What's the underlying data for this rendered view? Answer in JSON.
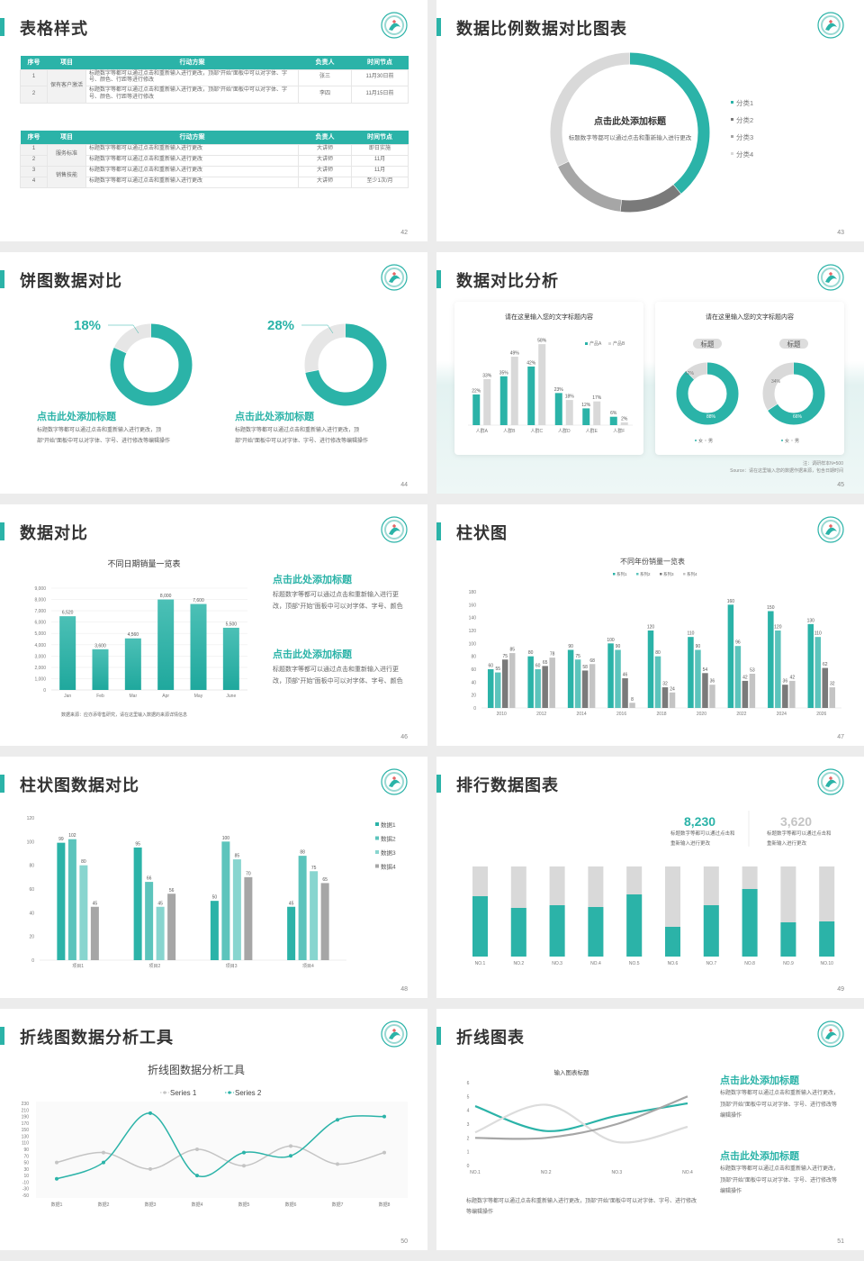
{
  "colors": {
    "teal": "#2bb3a8",
    "teal2": "#5cc4bc",
    "teal3": "#88d5cf",
    "dark_gray": "#7a7a7a",
    "mid_gray": "#a6a6a6",
    "light_gray": "#d9d9d9"
  },
  "slides": {
    "s42": {
      "title": "表格样式",
      "page": "42",
      "table1": {
        "headers": [
          "序号",
          "项目",
          "行动方案",
          "负责人",
          "时间节点"
        ],
        "groups": [
          {
            "name": "保有客户激活",
            "rows": [
              [
                "1",
                "标题数字等都可以通过点击和重新输入进行更改，顶部“开始”面板中可以对字体、字号、颜色、行距等进行修改",
                "张三",
                "11月30日前"
              ],
              [
                "2",
                "标题数字等都可以通过点击和重新输入进行更改，顶部“开始”面板中可以对字体、字号、颜色、行距等进行修改",
                "李四",
                "11月15日前"
              ]
            ]
          }
        ]
      },
      "table2": {
        "headers": [
          "序号",
          "项目",
          "行动方案",
          "负责人",
          "时间节点"
        ],
        "groups": [
          {
            "name": "服务标准",
            "rows": [
              [
                "1",
                "标题数字等都可以通过点击和重新输入进行更改",
                "大讲师",
                "即日实施"
              ],
              [
                "2",
                "标题数字等都可以通过点击和重新输入进行更改",
                "大讲师",
                "11月"
              ]
            ]
          },
          {
            "name": "销售技能",
            "rows": [
              [
                "3",
                "标题数字等都可以通过点击和重新输入进行更改",
                "大讲师",
                "11月"
              ],
              [
                "4",
                "标题数字等都可以通过点击和重新输入进行更改",
                "大讲师",
                "至少1次/月"
              ]
            ]
          }
        ]
      }
    },
    "s43": {
      "title": "数据比例数据对比图表",
      "page": "43",
      "center_title": "点击此处添加标题",
      "center_text": "标题数字等都可以通过点击和重新输入进行更改"
    },
    "s44": {
      "title": "饼图数据对比",
      "page": "44",
      "items": [
        {
          "percent": "18%",
          "heading": "点击此处添加标题",
          "text": "标题数字等都可以通过点击和重新输入进行更改，顶部“开始”面板中可以对字体、字号、进行修改等编辑操作"
        },
        {
          "percent": "28%",
          "heading": "点击此处添加标题",
          "text": "标题数字等都可以通过点击和重新输入进行更改，顶部“开始”面板中可以对字体、字号、进行修改等编辑操作"
        }
      ]
    },
    "s45": {
      "title": "数据对比分析",
      "page": "45",
      "note": "注：调研样本N=500",
      "source": "Source：请在这里输入您的数据作据来源，包含日期时间"
    },
    "s46": {
      "title": "数据对比",
      "page": "46",
      "source": "数据来源：应亦添零售研究，请在这里输入数据的来源详情信息",
      "blocks": [
        {
          "heading": "点击此处添加标题",
          "text": "标题数字等都可以通过点击和重新输入进行更改，顶部“开始”面板中可以对字体、字号、颜色"
        },
        {
          "heading": "点击此处添加标题",
          "text": "标题数字等都可以通过点击和重新输入进行更改，顶部“开始”面板中可以对字体、字号、颜色"
        }
      ]
    },
    "s47": {
      "title": "柱状图",
      "page": "47"
    },
    "s48": {
      "title": "柱状图数据对比",
      "page": "48"
    },
    "s49": {
      "title": "排行数据图表",
      "page": "49",
      "stats": [
        {
          "value": "8,230",
          "text": "标题数字等都可以通过点击和重新输入进行更改"
        },
        {
          "value": "3,620",
          "text": "标题数字等都可以通过点击和重新输入进行更改"
        }
      ]
    },
    "s50": {
      "title": "折线图数据分析工具",
      "page": "50"
    },
    "s51": {
      "title": "折线图表",
      "page": "51",
      "bottom_text": "标题数字等都可以通过点击和重新输入进行更改，顶部“开始”面板中可以对字体、字号、进行修改等编辑操作",
      "blocks": [
        {
          "heading": "点击此处添加标题",
          "text": "标题数字等都可以通过点击和重新输入进行更改，顶部“开始”面板中可以对字体、字号、进行修改等编辑操作"
        },
        {
          "heading": "点击此处添加标题",
          "text": "标题数字等都可以通过点击和重新输入进行更改，顶部“开始”面板中可以对字体、字号、进行修改等编辑操作"
        }
      ]
    }
  },
  "chart_data": [
    {
      "id": "s43",
      "type": "pie",
      "categories": [
        "分类1",
        "分类2",
        "分类3",
        "分类4"
      ],
      "values": [
        39,
        13,
        16,
        32
      ],
      "colors": [
        "#2bb3a8",
        "#7a7a7a",
        "#a6a6a6",
        "#d9d9d9"
      ],
      "legend": "right"
    },
    {
      "id": "s44a",
      "type": "pie",
      "values": [
        82,
        18
      ],
      "colors": [
        "#2bb3a8",
        "#e6e6e6"
      ]
    },
    {
      "id": "s44b",
      "type": "pie",
      "values": [
        72,
        28
      ],
      "colors": [
        "#2bb3a8",
        "#e6e6e6"
      ]
    },
    {
      "id": "s45bar",
      "type": "bar",
      "title": "请在这里输入您的文字标题内容",
      "categories": [
        "人群A",
        "人群B",
        "人群C",
        "人群D",
        "人群E",
        "人群F"
      ],
      "series": [
        {
          "name": "产品A",
          "values": [
            22,
            35,
            42,
            23,
            12,
            6
          ],
          "labels": [
            "22%",
            "35%",
            "42%",
            "23%",
            "12%",
            "6%"
          ]
        },
        {
          "name": "产品B",
          "values": [
            33,
            49,
            58,
            18,
            17,
            2
          ],
          "labels": [
            "33%",
            "49%",
            "58%",
            "18%",
            "17%",
            "2%"
          ]
        }
      ],
      "colors": [
        "#2bb3a8",
        "#d9d9d9"
      ],
      "legend": "top-right"
    },
    {
      "id": "s45pie",
      "type": "pie",
      "title": "请在这里输入您的文字标题内容",
      "pies": [
        {
          "label": "标题",
          "values": [
            88,
            12
          ],
          "labels": [
            "88%",
            "12%"
          ]
        },
        {
          "label": "标题",
          "values": [
            66,
            34
          ],
          "labels": [
            "66%",
            "34%"
          ]
        }
      ],
      "legend_items": [
        "女",
        "男"
      ],
      "colors": [
        "#2bb3a8",
        "#d9d9d9"
      ]
    },
    {
      "id": "s46",
      "type": "bar",
      "title": "不同日期销量一览表",
      "categories": [
        "Jan",
        "Feb",
        "Mar",
        "Apr",
        "May",
        "June"
      ],
      "series": [
        {
          "values": [
            6520,
            3600,
            4560,
            8000,
            7600,
            5500
          ],
          "labels": [
            "6,520",
            "3,600",
            "4,560",
            "8,000",
            "7,600",
            "5,500"
          ]
        }
      ],
      "yticks": [
        "0",
        "1,000",
        "2,000",
        "3,000",
        "4,000",
        "5,000",
        "6,000",
        "7,000",
        "8,000",
        "9,000"
      ],
      "ylim": [
        0,
        9000
      ],
      "grid": true,
      "colors": [
        "#2bb3a8"
      ]
    },
    {
      "id": "s47",
      "type": "bar",
      "title": "不同年份销量一览表",
      "categories": [
        "2010",
        "2012",
        "2014",
        "2016",
        "2018",
        "2020",
        "2022",
        "2024",
        "2026"
      ],
      "series": [
        {
          "name": "系列1",
          "values": [
            60,
            80,
            90,
            100,
            120,
            110,
            160,
            150,
            130
          ]
        },
        {
          "name": "系列2",
          "values": [
            55,
            60,
            75,
            90,
            80,
            90,
            96,
            120,
            110
          ]
        },
        {
          "name": "系列3",
          "values": [
            75,
            65,
            58,
            46,
            32,
            54,
            42,
            36,
            62
          ]
        },
        {
          "name": "系列4",
          "values": [
            85,
            78,
            68,
            8,
            24,
            36,
            53,
            42,
            32
          ]
        }
      ],
      "yticks": [
        "0",
        "20",
        "40",
        "60",
        "80",
        "100",
        "120",
        "140",
        "160",
        "180"
      ],
      "ylim": [
        0,
        180
      ],
      "colors": [
        "#2bb3a8",
        "#5cc4bc",
        "#7a7a7a",
        "#c4c4c4"
      ],
      "legend": "top"
    },
    {
      "id": "s48",
      "type": "bar",
      "categories": [
        "项目1",
        "项目2",
        "项目3",
        "项目4"
      ],
      "series": [
        {
          "name": "数据1",
          "values": [
            99,
            95,
            50,
            45
          ]
        },
        {
          "name": "数据2",
          "values": [
            102,
            66,
            100,
            88
          ]
        },
        {
          "name": "数据3",
          "values": [
            80,
            45,
            85,
            75
          ]
        },
        {
          "name": "数据4",
          "values": [
            45,
            56,
            70,
            65
          ]
        }
      ],
      "yticks": [
        "0",
        "20",
        "40",
        "60",
        "80",
        "100",
        "120"
      ],
      "ylim": [
        0,
        120
      ],
      "colors": [
        "#2bb3a8",
        "#5cc4bc",
        "#88d5cf",
        "#a6a6a6"
      ],
      "legend": "right"
    },
    {
      "id": "s49",
      "type": "bar",
      "categories": [
        "NO.1",
        "NO.2",
        "NO.3",
        "NO.4",
        "NO.5",
        "NO.6",
        "NO.7",
        "NO.8",
        "NO.9",
        "NO.10"
      ],
      "values": [
        0.67,
        0.54,
        0.57,
        0.55,
        0.69,
        0.33,
        0.57,
        0.75,
        0.38,
        0.39
      ],
      "colors": [
        "#2bb3a8",
        "#d9d9d9"
      ]
    },
    {
      "id": "s50",
      "type": "line",
      "title": "折线图数据分析工具",
      "categories": [
        "数据1",
        "数据2",
        "数据3",
        "数据4",
        "数据5",
        "数据6",
        "数据7",
        "数据8"
      ],
      "series": [
        {
          "name": "Series 1",
          "values": [
            50,
            80,
            30,
            90,
            40,
            100,
            45,
            80
          ]
        },
        {
          "name": "Series 2",
          "values": [
            0,
            50,
            200,
            10,
            80,
            70,
            180,
            190
          ]
        }
      ],
      "yticks": [
        "-50",
        "-30",
        "-10",
        "10",
        "30",
        "50",
        "70",
        "90",
        "110",
        "130",
        "150",
        "170",
        "190",
        "210",
        "230"
      ],
      "ylim": [
        -50,
        230
      ],
      "colors": [
        "#c4c4c4",
        "#2bb3a8"
      ],
      "legend": "top"
    },
    {
      "id": "s51",
      "type": "line",
      "title": "输入图表标题",
      "categories": [
        "NO.1",
        "NO.2",
        "NO.3",
        "NO.4"
      ],
      "series": [
        {
          "values": [
            4.3,
            2.5,
            3.6,
            4.5
          ]
        },
        {
          "values": [
            2.4,
            4.4,
            1.7,
            2.8
          ]
        },
        {
          "values": [
            2.0,
            2.0,
            3.0,
            5.0
          ]
        }
      ],
      "yticks": [
        "0",
        "1",
        "2",
        "3",
        "4",
        "5",
        "6"
      ],
      "ylim": [
        0,
        6
      ],
      "colors": [
        "#2bb3a8",
        "#dcdcdc",
        "#a6a6a6"
      ]
    }
  ]
}
